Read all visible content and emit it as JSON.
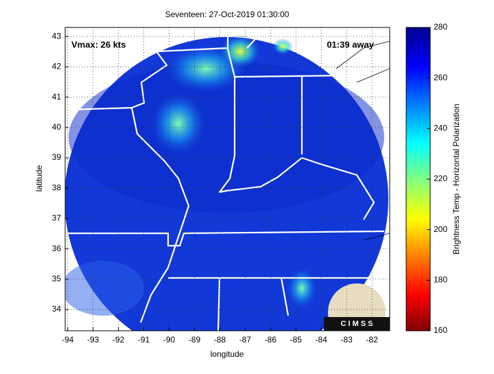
{
  "chart_data": {
    "type": "map",
    "title": "Seventeen: 27-Oct-2019 01:30:00",
    "x_label": "longitude",
    "y_label": "latitude",
    "xlim": [
      -94.1,
      -81.3
    ],
    "ylim": [
      33.3,
      43.3
    ],
    "xticks": [
      -94,
      -93,
      -92,
      -91,
      -90,
      -89,
      -88,
      -87,
      -86,
      -85,
      -84,
      -83,
      -82
    ],
    "yticks": [
      34,
      35,
      36,
      37,
      38,
      39,
      40,
      41,
      42,
      43
    ],
    "grid": true,
    "colorbar": {
      "label": "Brightness Temp - Horizontal Polarization",
      "lim": [
        160,
        280
      ],
      "ticks": [
        160,
        180,
        200,
        220,
        240,
        260,
        280
      ]
    },
    "annotations": [
      "Vmax: 26 kts",
      "01:39 away"
    ],
    "logo": "C I M S S"
  }
}
